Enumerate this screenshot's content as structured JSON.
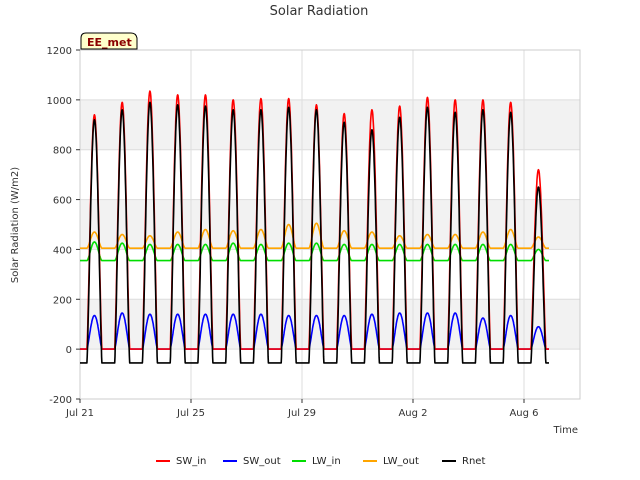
{
  "chart_data": {
    "type": "line",
    "title": "Solar Radiation",
    "xlabel": "Time",
    "ylabel": "Solar Radiation (W/m2)",
    "tag": "EE_met",
    "ylim": [
      -200,
      1200
    ],
    "yticks": [
      -200,
      0,
      200,
      400,
      600,
      800,
      1000,
      1200
    ],
    "x_range_days": [
      0,
      20
    ],
    "xticks": [
      {
        "day": 0,
        "label": "Jul 21"
      },
      {
        "day": 4,
        "label": "Jul 25"
      },
      {
        "day": 8,
        "label": "Jul 29"
      },
      {
        "day": 12,
        "label": "Aug 2"
      },
      {
        "day": 16,
        "label": "Aug 6"
      }
    ],
    "grid": true,
    "legend_position": "bottom",
    "daily_peaks": {
      "x_day": [
        0.8,
        1.8,
        2.8,
        3.8,
        4.8,
        5.8,
        6.8,
        7.8,
        8.8,
        9.8,
        10.8,
        11.8,
        12.8,
        13.8,
        14.8,
        15.8,
        16.8
      ],
      "series": [
        {
          "name": "SW_in",
          "color": "#ff0000",
          "values": [
            940,
            990,
            1035,
            1020,
            1020,
            1000,
            1005,
            1005,
            980,
            945,
            960,
            975,
            1010,
            1000,
            1000,
            990,
            720
          ]
        },
        {
          "name": "SW_out",
          "color": "#0000ff",
          "values": [
            135,
            145,
            140,
            140,
            140,
            140,
            140,
            135,
            135,
            135,
            140,
            145,
            145,
            145,
            125,
            135,
            90
          ]
        },
        {
          "name": "LW_in",
          "color": "#00dd00",
          "values": [
            430,
            425,
            420,
            420,
            420,
            425,
            420,
            425,
            425,
            420,
            420,
            420,
            420,
            420,
            420,
            420,
            400
          ]
        },
        {
          "name": "LW_out",
          "color": "#ffa500",
          "values": [
            470,
            460,
            455,
            470,
            480,
            475,
            480,
            500,
            505,
            475,
            470,
            455,
            460,
            460,
            470,
            480,
            450
          ]
        },
        {
          "name": "Rnet",
          "color": "#000000",
          "values": [
            920,
            960,
            990,
            980,
            975,
            960,
            960,
            970,
            960,
            910,
            880,
            930,
            970,
            950,
            960,
            950,
            650
          ]
        }
      ]
    },
    "night_levels": {
      "SW_in": 0,
      "SW_out": 0,
      "LW_in": 355,
      "LW_out": 405,
      "Rnet": -55
    }
  },
  "legend": [
    {
      "label": "SW_in",
      "color": "#ff0000"
    },
    {
      "label": "SW_out",
      "color": "#0000ff"
    },
    {
      "label": "LW_in",
      "color": "#00dd00"
    },
    {
      "label": "LW_out",
      "color": "#ffa500"
    },
    {
      "label": "Rnet",
      "color": "#000000"
    }
  ]
}
